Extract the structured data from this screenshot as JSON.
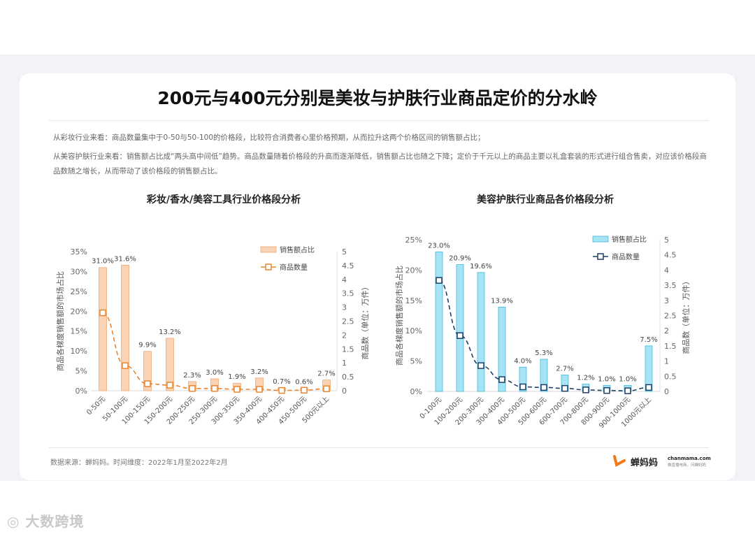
{
  "title": "200元与400元分别是美妆与护肤行业商品定价的分水岭",
  "paragraphs": [
    "从彩妆行业来看：商品数量集中于0-50与50-100的价格段，比较符合消费者心里价格预期，从而拉升这两个价格区间的销售额占比；",
    "从美容护肤行业来看：销售额占比成“两头高中间低”趋势。商品数量随着价格段的升高而逐渐降低，销售额占比也随之下降；定价于千元以上的商品主要以礼盒套装的形式进行组合售卖，对应该价格段商品数随之增长，从而带动了该价格段的销售额占比。"
  ],
  "chart_data": [
    {
      "type": "bar",
      "title": "彩妆/香水/美容工具行业价格段分析",
      "categories": [
        "0-50元",
        "50-100元",
        "100-150元",
        "150-200元",
        "200-250元",
        "250-300元",
        "300-350元",
        "350-400元",
        "400-450元",
        "450-500元",
        "500元以上"
      ],
      "ylabel": "商品各梯度销售额的市场占比",
      "y2label": "商品数（单位：万件）",
      "ylim": [
        0,
        35
      ],
      "yticks": [
        "0%",
        "5%",
        "10%",
        "15%",
        "20%",
        "25%",
        "30%",
        "35%"
      ],
      "y2lim": [
        0,
        5
      ],
      "y2ticks": [
        "0",
        "0.5",
        "1",
        "1.5",
        "2",
        "2.5",
        "3",
        "3.5",
        "4",
        "4.5",
        "5"
      ],
      "legend_position": "top-right",
      "bar_color": "#f9d3b4",
      "bar_edge": "#efaa78",
      "line_color": "#e8862e",
      "series": [
        {
          "name": "销售额占比",
          "type": "bar",
          "axis": "left",
          "values": [
            31.0,
            31.6,
            9.9,
            13.2,
            2.3,
            3.0,
            1.9,
            3.2,
            0.7,
            0.6,
            2.7
          ],
          "labels": [
            "31.0%",
            "31.6%",
            "9.9%",
            "13.2%",
            "2.3%",
            "3.0%",
            "1.9%",
            "3.2%",
            "0.7%",
            "0.6%",
            "2.7%"
          ]
        },
        {
          "name": "商品数量",
          "type": "line",
          "axis": "right",
          "style": "dashed",
          "marker": "square",
          "values": [
            2.8,
            0.9,
            0.25,
            0.2,
            0.08,
            0.08,
            0.05,
            0.05,
            0.01,
            0.02,
            0.07
          ]
        }
      ]
    },
    {
      "type": "bar",
      "title": "美容护肤行业商品各价格段分析",
      "categories": [
        "0-100元",
        "100-200元",
        "200-300元",
        "300-400元",
        "400-500元",
        "500-600元",
        "600-700元",
        "700-800元",
        "800-900元",
        "900-1000元",
        "1000元以上"
      ],
      "ylabel": "商品各梯度销售额的市场占比",
      "y2label": "商品数（单位：万件）",
      "ylim": [
        0,
        25
      ],
      "yticks": [
        "0%",
        "5%",
        "10%",
        "15%",
        "20%",
        "25%"
      ],
      "y2lim": [
        0,
        5
      ],
      "y2ticks": [
        "0",
        "0.5",
        "1",
        "1.5",
        "2",
        "2.5",
        "3",
        "3.5",
        "4",
        "4.5",
        "5"
      ],
      "legend_position": "top-right",
      "bar_color": "#a6e3f5",
      "bar_edge": "#3fb7dc",
      "line_color": "#1f3f66",
      "series": [
        {
          "name": "销售额占比",
          "type": "bar",
          "axis": "left",
          "values": [
            23.0,
            20.9,
            19.6,
            13.9,
            4.0,
            5.3,
            2.7,
            1.2,
            1.0,
            1.0,
            7.5
          ],
          "labels": [
            "23.0%",
            "20.9%",
            "19.6%",
            "13.9%",
            "4.0%",
            "5.3%",
            "2.7%",
            "1.2%",
            "1.0%",
            "1.0%",
            "7.5%"
          ]
        },
        {
          "name": "商品数量",
          "type": "line",
          "axis": "right",
          "style": "dashed",
          "marker": "square",
          "values": [
            3.66,
            1.84,
            0.85,
            0.39,
            0.15,
            0.13,
            0.1,
            0.05,
            0.03,
            0.02,
            0.13
          ]
        }
      ]
    }
  ],
  "footer": {
    "source": "数据来源：蝉妈妈。时间维度：2022年1月至2022年2月",
    "brand": "蝉妈妈",
    "site": "chanmama.com",
    "slogan": "做直播电商，问蝉妈妈",
    "brand_color": "#f07a1a"
  },
  "watermark": "大数跨境"
}
